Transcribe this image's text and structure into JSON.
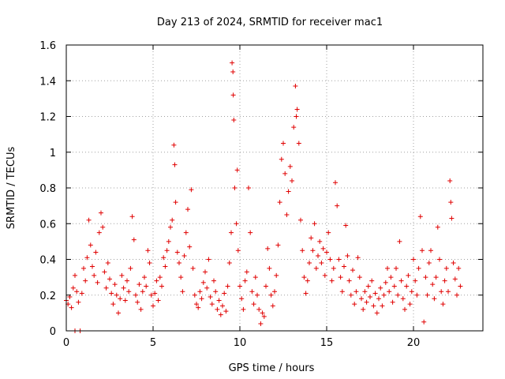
{
  "chart_data": {
    "type": "scatter",
    "title": "Day 213 of 2024, SRMTID for receiver mac1",
    "xlabel": "GPS time / hours",
    "ylabel": "SRMTID / TECUs",
    "xlim": [
      0,
      24
    ],
    "ylim": [
      0,
      1.6
    ],
    "grid": true,
    "marker": "+",
    "series": [
      {
        "name": "SRMTID",
        "color": "#e00000",
        "points": [
          [
            0.0,
            0.17
          ],
          [
            0.1,
            0.15
          ],
          [
            0.2,
            0.19
          ],
          [
            0.3,
            0.13
          ],
          [
            0.4,
            0.24
          ],
          [
            0.5,
            0.31
          ],
          [
            0.5,
            0.0
          ],
          [
            0.6,
            0.22
          ],
          [
            0.7,
            0.16
          ],
          [
            0.8,
            0.0
          ],
          [
            0.9,
            0.21
          ],
          [
            1.0,
            0.35
          ],
          [
            1.1,
            0.28
          ],
          [
            1.2,
            0.41
          ],
          [
            1.3,
            0.62
          ],
          [
            1.4,
            0.48
          ],
          [
            1.5,
            0.36
          ],
          [
            1.6,
            0.31
          ],
          [
            1.7,
            0.44
          ],
          [
            1.8,
            0.27
          ],
          [
            1.9,
            0.55
          ],
          [
            2.0,
            0.66
          ],
          [
            2.1,
            0.58
          ],
          [
            2.2,
            0.33
          ],
          [
            2.3,
            0.24
          ],
          [
            2.4,
            0.38
          ],
          [
            2.5,
            0.29
          ],
          [
            2.6,
            0.21
          ],
          [
            2.7,
            0.15
          ],
          [
            2.8,
            0.26
          ],
          [
            2.9,
            0.2
          ],
          [
            3.0,
            0.1
          ],
          [
            3.1,
            0.18
          ],
          [
            3.2,
            0.31
          ],
          [
            3.3,
            0.24
          ],
          [
            3.4,
            0.17
          ],
          [
            3.5,
            0.28
          ],
          [
            3.6,
            0.22
          ],
          [
            3.7,
            0.35
          ],
          [
            3.8,
            0.64
          ],
          [
            3.9,
            0.51
          ],
          [
            4.0,
            0.2
          ],
          [
            4.1,
            0.16
          ],
          [
            4.2,
            0.26
          ],
          [
            4.3,
            0.12
          ],
          [
            4.4,
            0.22
          ],
          [
            4.5,
            0.3
          ],
          [
            4.6,
            0.25
          ],
          [
            4.7,
            0.45
          ],
          [
            4.8,
            0.38
          ],
          [
            4.9,
            0.2
          ],
          [
            5.0,
            0.14
          ],
          [
            5.1,
            0.21
          ],
          [
            5.2,
            0.28
          ],
          [
            5.3,
            0.17
          ],
          [
            5.4,
            0.3
          ],
          [
            5.5,
            0.25
          ],
          [
            5.6,
            0.41
          ],
          [
            5.7,
            0.36
          ],
          [
            5.8,
            0.45
          ],
          [
            5.9,
            0.5
          ],
          [
            6.0,
            0.58
          ],
          [
            6.1,
            0.62
          ],
          [
            6.2,
            1.04
          ],
          [
            6.25,
            0.93
          ],
          [
            6.3,
            0.72
          ],
          [
            6.4,
            0.44
          ],
          [
            6.5,
            0.38
          ],
          [
            6.6,
            0.3
          ],
          [
            6.7,
            0.22
          ],
          [
            6.8,
            0.42
          ],
          [
            6.9,
            0.55
          ],
          [
            7.0,
            0.68
          ],
          [
            7.1,
            0.47
          ],
          [
            7.2,
            0.79
          ],
          [
            7.3,
            0.35
          ],
          [
            7.4,
            0.2
          ],
          [
            7.5,
            0.15
          ],
          [
            7.6,
            0.13
          ],
          [
            7.7,
            0.22
          ],
          [
            7.8,
            0.18
          ],
          [
            7.9,
            0.27
          ],
          [
            8.0,
            0.33
          ],
          [
            8.1,
            0.24
          ],
          [
            8.2,
            0.4
          ],
          [
            8.3,
            0.19
          ],
          [
            8.4,
            0.15
          ],
          [
            8.5,
            0.28
          ],
          [
            8.6,
            0.22
          ],
          [
            8.7,
            0.12
          ],
          [
            8.8,
            0.17
          ],
          [
            8.9,
            0.09
          ],
          [
            9.0,
            0.14
          ],
          [
            9.1,
            0.21
          ],
          [
            9.2,
            0.11
          ],
          [
            9.3,
            0.25
          ],
          [
            9.4,
            0.38
          ],
          [
            9.5,
            0.55
          ],
          [
            9.55,
            1.5
          ],
          [
            9.6,
            1.45
          ],
          [
            9.62,
            1.32
          ],
          [
            9.65,
            1.18
          ],
          [
            9.7,
            0.8
          ],
          [
            9.8,
            0.6
          ],
          [
            9.85,
            0.9
          ],
          [
            9.9,
            0.45
          ],
          [
            10.0,
            0.25
          ],
          [
            10.1,
            0.18
          ],
          [
            10.2,
            0.12
          ],
          [
            10.3,
            0.28
          ],
          [
            10.4,
            0.33
          ],
          [
            10.5,
            0.8
          ],
          [
            10.6,
            0.55
          ],
          [
            10.7,
            0.22
          ],
          [
            10.8,
            0.15
          ],
          [
            10.9,
            0.3
          ],
          [
            11.0,
            0.2
          ],
          [
            11.1,
            0.12
          ],
          [
            11.2,
            0.04
          ],
          [
            11.3,
            0.1
          ],
          [
            11.4,
            0.08
          ],
          [
            11.5,
            0.25
          ],
          [
            11.6,
            0.46
          ],
          [
            11.7,
            0.35
          ],
          [
            11.8,
            0.2
          ],
          [
            11.9,
            0.14
          ],
          [
            12.0,
            0.22
          ],
          [
            12.1,
            0.31
          ],
          [
            12.2,
            0.48
          ],
          [
            12.3,
            0.72
          ],
          [
            12.4,
            0.96
          ],
          [
            12.5,
            1.05
          ],
          [
            12.6,
            0.88
          ],
          [
            12.7,
            0.65
          ],
          [
            12.8,
            0.78
          ],
          [
            12.9,
            0.92
          ],
          [
            13.0,
            0.84
          ],
          [
            13.1,
            1.14
          ],
          [
            13.2,
            1.37
          ],
          [
            13.25,
            1.2
          ],
          [
            13.3,
            1.24
          ],
          [
            13.4,
            1.05
          ],
          [
            13.5,
            0.62
          ],
          [
            13.6,
            0.45
          ],
          [
            13.7,
            0.3
          ],
          [
            13.8,
            0.21
          ],
          [
            13.9,
            0.28
          ],
          [
            14.0,
            0.38
          ],
          [
            14.1,
            0.52
          ],
          [
            14.2,
            0.45
          ],
          [
            14.3,
            0.6
          ],
          [
            14.4,
            0.35
          ],
          [
            14.5,
            0.42
          ],
          [
            14.6,
            0.5
          ],
          [
            14.7,
            0.38
          ],
          [
            14.8,
            0.46
          ],
          [
            14.9,
            0.31
          ],
          [
            15.0,
            0.44
          ],
          [
            15.1,
            0.55
          ],
          [
            15.2,
            0.4
          ],
          [
            15.3,
            0.28
          ],
          [
            15.4,
            0.35
          ],
          [
            15.5,
            0.83
          ],
          [
            15.6,
            0.7
          ],
          [
            15.7,
            0.4
          ],
          [
            15.8,
            0.3
          ],
          [
            15.9,
            0.22
          ],
          [
            16.0,
            0.36
          ],
          [
            16.1,
            0.59
          ],
          [
            16.2,
            0.42
          ],
          [
            16.3,
            0.28
          ],
          [
            16.4,
            0.2
          ],
          [
            16.5,
            0.34
          ],
          [
            16.6,
            0.15
          ],
          [
            16.7,
            0.22
          ],
          [
            16.8,
            0.41
          ],
          [
            16.9,
            0.3
          ],
          [
            17.0,
            0.18
          ],
          [
            17.1,
            0.12
          ],
          [
            17.2,
            0.22
          ],
          [
            17.3,
            0.16
          ],
          [
            17.4,
            0.25
          ],
          [
            17.5,
            0.19
          ],
          [
            17.6,
            0.28
          ],
          [
            17.7,
            0.14
          ],
          [
            17.8,
            0.21
          ],
          [
            17.9,
            0.1
          ],
          [
            18.0,
            0.18
          ],
          [
            18.1,
            0.24
          ],
          [
            18.2,
            0.14
          ],
          [
            18.3,
            0.2
          ],
          [
            18.4,
            0.27
          ],
          [
            18.5,
            0.35
          ],
          [
            18.6,
            0.22
          ],
          [
            18.7,
            0.3
          ],
          [
            18.8,
            0.16
          ],
          [
            18.9,
            0.25
          ],
          [
            19.0,
            0.35
          ],
          [
            19.1,
            0.2
          ],
          [
            19.2,
            0.5
          ],
          [
            19.3,
            0.28
          ],
          [
            19.4,
            0.18
          ],
          [
            19.5,
            0.12
          ],
          [
            19.6,
            0.25
          ],
          [
            19.7,
            0.31
          ],
          [
            19.8,
            0.15
          ],
          [
            19.9,
            0.22
          ],
          [
            20.0,
            0.4
          ],
          [
            20.1,
            0.28
          ],
          [
            20.2,
            0.2
          ],
          [
            20.3,
            0.35
          ],
          [
            20.4,
            0.64
          ],
          [
            20.5,
            0.45
          ],
          [
            20.6,
            0.05
          ],
          [
            20.7,
            0.3
          ],
          [
            20.8,
            0.2
          ],
          [
            20.9,
            0.38
          ],
          [
            21.0,
            0.45
          ],
          [
            21.1,
            0.26
          ],
          [
            21.2,
            0.18
          ],
          [
            21.3,
            0.3
          ],
          [
            21.4,
            0.58
          ],
          [
            21.5,
            0.4
          ],
          [
            21.6,
            0.22
          ],
          [
            21.7,
            0.15
          ],
          [
            21.8,
            0.28
          ],
          [
            21.9,
            0.35
          ],
          [
            22.0,
            0.22
          ],
          [
            22.1,
            0.84
          ],
          [
            22.15,
            0.72
          ],
          [
            22.2,
            0.63
          ],
          [
            22.3,
            0.38
          ],
          [
            22.4,
            0.29
          ],
          [
            22.5,
            0.2
          ],
          [
            22.6,
            0.35
          ],
          [
            22.7,
            0.25
          ]
        ]
      }
    ]
  },
  "axes": {
    "x_ticks": [
      {
        "value": 0,
        "label": "0"
      },
      {
        "value": 5,
        "label": "5"
      },
      {
        "value": 10,
        "label": "10"
      },
      {
        "value": 15,
        "label": "15"
      },
      {
        "value": 20,
        "label": "20"
      }
    ],
    "y_ticks": [
      {
        "value": 0,
        "label": "0"
      },
      {
        "value": 0.2,
        "label": "0.2"
      },
      {
        "value": 0.4,
        "label": "0.4"
      },
      {
        "value": 0.6,
        "label": "0.6"
      },
      {
        "value": 0.8,
        "label": "0.8"
      },
      {
        "value": 1.0,
        "label": "1"
      },
      {
        "value": 1.2,
        "label": "1.2"
      },
      {
        "value": 1.4,
        "label": "1.4"
      },
      {
        "value": 1.6,
        "label": "1.6"
      }
    ]
  }
}
